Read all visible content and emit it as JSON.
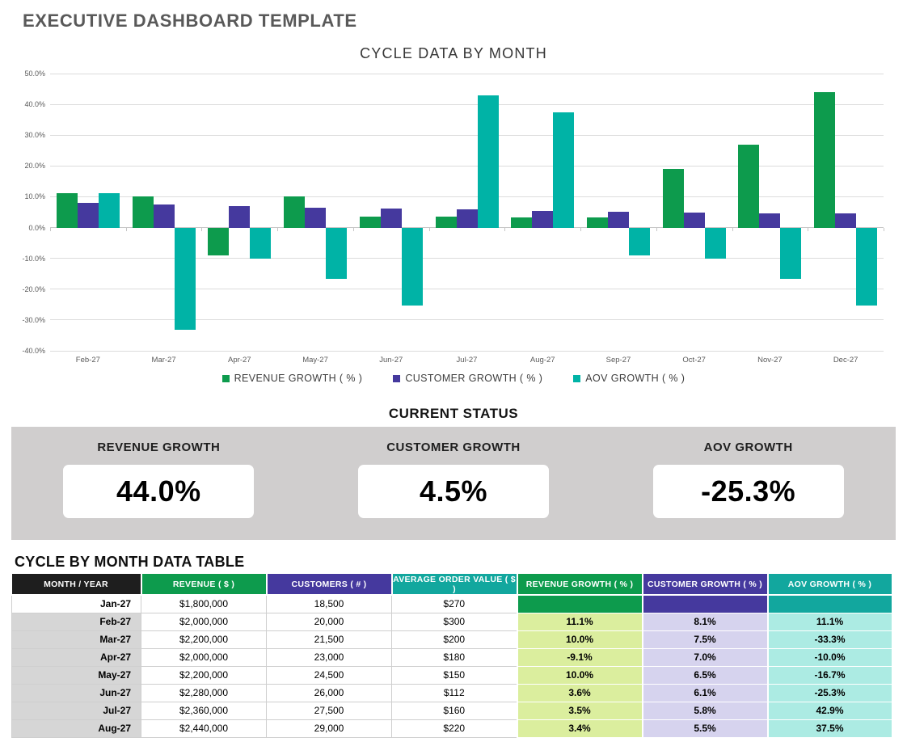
{
  "page": {
    "title": "EXECUTIVE DASHBOARD TEMPLATE"
  },
  "chart_data": {
    "type": "bar",
    "title": "CYCLE DATA BY MONTH",
    "categories": [
      "Feb-27",
      "Mar-27",
      "Apr-27",
      "May-27",
      "Jun-27",
      "Jul-27",
      "Aug-27",
      "Sep-27",
      "Oct-27",
      "Nov-27",
      "Dec-27"
    ],
    "series": [
      {
        "key": "revenue-growth",
        "name": "REVENUE GROWTH ( % )",
        "color": "#0D9B4D",
        "values": [
          11.1,
          10.0,
          -9.1,
          10.0,
          3.6,
          3.5,
          3.4,
          3.3,
          19.0,
          27.0,
          44.0
        ]
      },
      {
        "key": "customer-growth",
        "name": "CUSTOMER GROWTH ( % )",
        "color": "#45399E",
        "values": [
          8.1,
          7.5,
          7.0,
          6.5,
          6.1,
          5.8,
          5.5,
          5.2,
          4.9,
          4.7,
          4.5
        ]
      },
      {
        "key": "aov-growth",
        "name": "AOV GROWTH ( % )",
        "color": "#00B3A6",
        "values": [
          11.1,
          -33.3,
          -10.0,
          -16.7,
          -25.3,
          42.9,
          37.5,
          -9.1,
          -10.0,
          -16.7,
          -25.3
        ]
      }
    ],
    "ylim": [
      -40,
      50
    ],
    "ytick_step": 10,
    "ytick_suffix": "%",
    "grid": true,
    "legend_position": "bottom"
  },
  "status": {
    "title": "CURRENT STATUS",
    "cards": [
      {
        "label": "REVENUE GROWTH",
        "value": "44.0%"
      },
      {
        "label": "CUSTOMER GROWTH",
        "value": "4.5%"
      },
      {
        "label": "AOV GROWTH",
        "value": "-25.3%"
      }
    ]
  },
  "table": {
    "title": "CYCLE BY MONTH DATA TABLE",
    "columns": [
      {
        "key": "month",
        "label": "MONTH / YEAR",
        "type": "month",
        "header_bg": "#1E1E1E"
      },
      {
        "key": "revenue",
        "label": "REVENUE ( $ )",
        "type": "num",
        "header_bg": "#0D9B4D"
      },
      {
        "key": "customers",
        "label": "CUSTOMERS ( # )",
        "type": "num",
        "header_bg": "#45399E"
      },
      {
        "key": "aov",
        "label": "AVERAGE ORDER VALUE ( $ )",
        "type": "num",
        "header_bg": "#12A79E"
      },
      {
        "key": "revenue_growth",
        "label": "REVENUE GROWTH ( % )",
        "type": "growth",
        "header_bg": "#0D9B4D",
        "cell_bg": "#DBEE9E"
      },
      {
        "key": "customer_growth",
        "label": "CUSTOMER GROWTH ( % )",
        "type": "growth",
        "header_bg": "#45399E",
        "cell_bg": "#D6D3EE"
      },
      {
        "key": "aov_growth",
        "label": "AOV GROWTH ( % )",
        "type": "growth",
        "header_bg": "#12A79E",
        "cell_bg": "#ACEBE3"
      }
    ],
    "rows": [
      {
        "month": "Jan-27",
        "revenue": "$1,800,000",
        "customers": "18,500",
        "aov": "$270",
        "revenue_growth": "",
        "customer_growth": "",
        "aov_growth": ""
      },
      {
        "month": "Feb-27",
        "revenue": "$2,000,000",
        "customers": "20,000",
        "aov": "$300",
        "revenue_growth": "11.1%",
        "customer_growth": "8.1%",
        "aov_growth": "11.1%"
      },
      {
        "month": "Mar-27",
        "revenue": "$2,200,000",
        "customers": "21,500",
        "aov": "$200",
        "revenue_growth": "10.0%",
        "customer_growth": "7.5%",
        "aov_growth": "-33.3%"
      },
      {
        "month": "Apr-27",
        "revenue": "$2,000,000",
        "customers": "23,000",
        "aov": "$180",
        "revenue_growth": "-9.1%",
        "customer_growth": "7.0%",
        "aov_growth": "-10.0%"
      },
      {
        "month": "May-27",
        "revenue": "$2,200,000",
        "customers": "24,500",
        "aov": "$150",
        "revenue_growth": "10.0%",
        "customer_growth": "6.5%",
        "aov_growth": "-16.7%"
      },
      {
        "month": "Jun-27",
        "revenue": "$2,280,000",
        "customers": "26,000",
        "aov": "$112",
        "revenue_growth": "3.6%",
        "customer_growth": "6.1%",
        "aov_growth": "-25.3%"
      },
      {
        "month": "Jul-27",
        "revenue": "$2,360,000",
        "customers": "27,500",
        "aov": "$160",
        "revenue_growth": "3.5%",
        "customer_growth": "5.8%",
        "aov_growth": "42.9%"
      },
      {
        "month": "Aug-27",
        "revenue": "$2,440,000",
        "customers": "29,000",
        "aov": "$220",
        "revenue_growth": "3.4%",
        "customer_growth": "5.5%",
        "aov_growth": "37.5%"
      }
    ]
  }
}
